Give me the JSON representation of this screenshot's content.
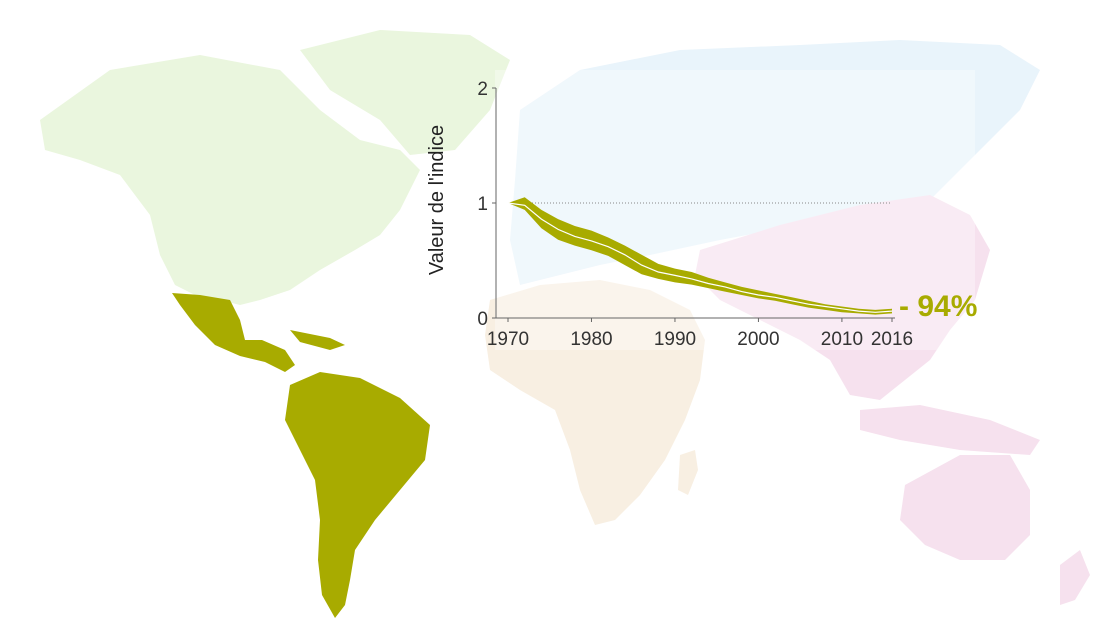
{
  "colors": {
    "accent": "#a8ab00",
    "north_america": "#eaf6de",
    "europe_asia_north": "#e9f4fb",
    "asia_pacific": "#f6e1ee",
    "africa": "#f8efe2",
    "latin_america": "#a8ab00"
  },
  "map": {
    "highlighted_region": "Latin America and Caribbean"
  },
  "chart_data": {
    "type": "area",
    "ylabel": "Valeur de l'indice",
    "xlabel": "",
    "title": "",
    "xlim": [
      1970,
      2016
    ],
    "ylim": [
      0,
      2
    ],
    "x_ticks": [
      1970,
      1980,
      1990,
      2000,
      2010,
      2016
    ],
    "y_ticks": [
      0,
      1,
      2
    ],
    "baseline": 1,
    "end_label": "- 94%",
    "series": [
      {
        "x": [
          1970,
          1972,
          1974,
          1976,
          1978,
          1980,
          1982,
          1984,
          1986,
          1988,
          1990,
          1992,
          1994,
          1996,
          1998,
          2000,
          2002,
          2004,
          2006,
          2008,
          2010,
          2012,
          2014,
          2016
        ],
        "values": [
          1.0,
          0.98,
          0.86,
          0.77,
          0.71,
          0.67,
          0.62,
          0.55,
          0.46,
          0.4,
          0.37,
          0.34,
          0.3,
          0.27,
          0.23,
          0.2,
          0.18,
          0.15,
          0.12,
          0.1,
          0.08,
          0.06,
          0.05,
          0.06
        ],
        "lower": [
          1.0,
          0.94,
          0.78,
          0.68,
          0.63,
          0.59,
          0.54,
          0.46,
          0.38,
          0.34,
          0.31,
          0.29,
          0.26,
          0.23,
          0.2,
          0.17,
          0.15,
          0.12,
          0.09,
          0.07,
          0.05,
          0.04,
          0.03,
          0.04
        ],
        "upper": [
          1.0,
          1.05,
          0.94,
          0.86,
          0.8,
          0.76,
          0.7,
          0.63,
          0.55,
          0.47,
          0.43,
          0.4,
          0.35,
          0.31,
          0.27,
          0.24,
          0.21,
          0.18,
          0.15,
          0.12,
          0.1,
          0.08,
          0.07,
          0.08
        ]
      }
    ]
  }
}
